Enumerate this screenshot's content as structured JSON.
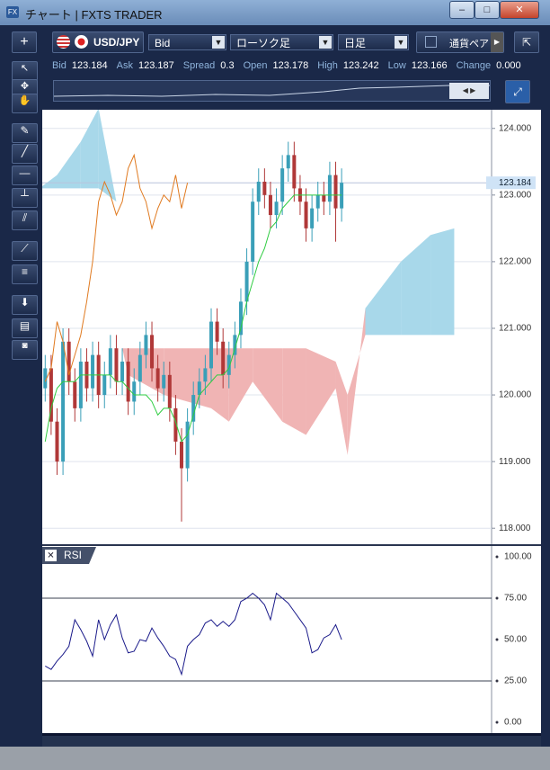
{
  "window": {
    "title": "チャート | FXTS TRADER"
  },
  "toolbar": {
    "symbol": "USD/JPY",
    "price_type": "Bid",
    "chart_type": "ローソク足",
    "period": "日足",
    "pair_label": "通貨ペア"
  },
  "quote": [
    {
      "label": "Bid",
      "value": "123.184"
    },
    {
      "label": "Ask",
      "value": "123.187"
    },
    {
      "label": "Spread",
      "value": "0.3"
    },
    {
      "label": "Open",
      "value": "123.178"
    },
    {
      "label": "High",
      "value": "123.242"
    },
    {
      "label": "Low",
      "value": "123.166"
    },
    {
      "label": "Change",
      "value": "0.000"
    }
  ],
  "chart_data": {
    "type": "candlestick",
    "xlim": [
      -0.5,
      75.3
    ],
    "ylim": [
      117.76,
      124.28
    ],
    "yticks": [
      {
        "value": 124,
        "label": "124.000"
      },
      {
        "value": 123,
        "label": "123.000"
      },
      {
        "value": 122,
        "label": "122.000"
      },
      {
        "value": 121,
        "label": "121.000"
      },
      {
        "value": 120,
        "label": "120.000"
      },
      {
        "value": 119,
        "label": "119.000"
      },
      {
        "value": 118,
        "label": "118.000"
      }
    ],
    "grid": true,
    "up_color": "#3a9fb8",
    "down_color": "#b03838",
    "open": [
      120.1,
      120.4,
      119.6,
      119.0,
      120.8,
      120.2,
      119.8,
      120.5,
      120.1,
      120.6,
      120.0,
      120.3,
      120.7,
      120.2,
      120.5,
      119.9,
      120.2,
      120.6,
      120.9,
      120.4,
      120.1,
      120.3,
      119.8,
      119.3,
      118.9,
      119.6,
      120.0,
      120.2,
      120.4,
      121.1,
      120.8,
      120.3,
      120.6,
      120.9,
      121.4,
      122.0,
      122.9,
      123.2,
      123.0,
      122.7,
      122.9,
      123.4,
      123.6,
      123.1,
      122.9,
      122.5,
      122.8,
      123.0,
      122.9,
      123.3,
      122.8
    ],
    "high": [
      120.6,
      120.6,
      119.8,
      121.0,
      121.0,
      120.4,
      120.7,
      120.7,
      120.8,
      120.8,
      120.5,
      120.9,
      120.9,
      120.7,
      120.7,
      120.4,
      120.8,
      121.1,
      121.1,
      120.6,
      120.5,
      120.5,
      120.0,
      119.5,
      119.8,
      120.2,
      120.4,
      120.6,
      121.3,
      121.3,
      121.0,
      120.8,
      121.1,
      121.6,
      122.2,
      123.1,
      123.4,
      123.4,
      123.2,
      123.1,
      123.6,
      123.8,
      123.8,
      123.3,
      123.1,
      123.0,
      123.2,
      123.2,
      123.5,
      123.5,
      123.4
    ],
    "low": [
      119.9,
      119.4,
      118.8,
      118.8,
      120.0,
      119.6,
      119.6,
      119.9,
      119.9,
      119.8,
      119.8,
      120.1,
      120.0,
      120.0,
      119.7,
      119.7,
      120.0,
      120.4,
      120.2,
      119.9,
      119.9,
      119.6,
      119.1,
      118.1,
      118.7,
      119.4,
      119.8,
      120.0,
      120.2,
      120.6,
      120.1,
      120.1,
      120.4,
      120.7,
      121.2,
      121.8,
      122.7,
      122.8,
      122.5,
      122.5,
      122.7,
      123.2,
      122.9,
      122.7,
      122.3,
      122.3,
      122.6,
      122.7,
      122.7,
      122.3,
      122.6
    ],
    "close": [
      120.4,
      119.6,
      119.0,
      120.8,
      120.2,
      119.8,
      120.5,
      120.1,
      120.6,
      120.0,
      120.3,
      120.7,
      120.2,
      120.5,
      119.9,
      120.2,
      120.6,
      120.9,
      120.4,
      120.1,
      120.3,
      119.8,
      119.3,
      118.9,
      119.6,
      120.0,
      120.2,
      120.4,
      121.1,
      120.8,
      120.3,
      120.6,
      120.9,
      121.4,
      122.0,
      122.9,
      123.2,
      123.0,
      122.7,
      122.9,
      123.4,
      123.6,
      123.1,
      122.9,
      122.5,
      122.8,
      123.0,
      122.9,
      123.3,
      122.8,
      123.184
    ],
    "lines": [
      {
        "color": "#e07a20",
        "values": [
          120.2,
          120.4,
          121.1,
          120.8,
          120.3,
          120.6,
          120.9,
          121.4,
          122.0,
          122.9,
          123.2,
          123.0,
          122.7,
          122.9,
          123.4,
          123.6,
          123.1,
          122.9,
          122.5,
          122.8,
          123.0,
          122.9,
          123.3,
          122.8,
          123.184,
          null,
          null,
          null,
          null,
          null,
          null,
          null,
          null,
          null,
          null,
          null,
          null,
          null,
          null,
          null,
          null,
          null,
          null,
          null,
          null,
          null,
          null,
          null,
          null,
          null,
          null
        ]
      },
      {
        "color": "#2ecc40",
        "values": [
          119.3,
          119.8,
          120.1,
          120.2,
          120.2,
          120.2,
          120.3,
          120.3,
          120.3,
          120.3,
          120.3,
          120.3,
          120.2,
          120.2,
          120.1,
          120.0,
          120.0,
          120.0,
          119.9,
          119.7,
          119.8,
          119.8,
          119.6,
          119.3,
          119.4,
          119.7,
          120.0,
          120.1,
          120.2,
          120.3,
          120.3,
          120.4,
          120.7,
          121.0,
          121.4,
          121.7,
          122.0,
          122.2,
          122.5,
          122.6,
          122.8,
          122.9,
          123.0,
          123.0,
          123.0,
          123.0,
          123.0,
          123.0,
          123.0,
          123.0,
          123.0
        ]
      }
    ],
    "cloud": {
      "up_color": "#a8d8ea",
      "down_color": "#f0b4b4",
      "x": [
        -1,
        2,
        6,
        9,
        12,
        13,
        14,
        20,
        28,
        31,
        35,
        40,
        44,
        49,
        51,
        54,
        60,
        65,
        69
      ],
      "span_a": [
        123.1,
        123.3,
        123.8,
        124.3,
        122.9,
        120.7,
        120.3,
        120.0,
        119.8,
        119.6,
        120.2,
        119.6,
        119.4,
        120.1,
        119.1,
        121.3,
        122.0,
        122.4,
        122.5
      ],
      "span_b": [
        123.1,
        123.1,
        123.1,
        123.1,
        122.9,
        120.7,
        120.7,
        120.7,
        120.7,
        120.7,
        120.7,
        120.7,
        120.7,
        120.5,
        120.0,
        120.9,
        120.9,
        120.9,
        120.9
      ]
    },
    "last": {
      "value": 123.184,
      "label": "123.184"
    },
    "rsi": {
      "title": "RSI",
      "color": "#1a1a8a",
      "ylim": [
        -6.5,
        106
      ],
      "yticks": [
        {
          "value": 100,
          "label": "100.00"
        },
        {
          "value": 75,
          "label": "75.00"
        },
        {
          "value": 50,
          "label": "50.00"
        },
        {
          "value": 25,
          "label": "25.00"
        },
        {
          "value": 0,
          "label": "0.00"
        }
      ],
      "levels": [
        75,
        25
      ],
      "values": [
        34,
        32,
        37,
        41,
        46,
        62,
        56,
        49,
        40,
        62,
        50,
        59,
        65,
        51,
        42,
        43,
        50,
        49,
        57,
        51,
        46,
        40,
        38,
        29,
        46,
        50,
        53,
        60,
        62,
        58,
        61,
        58,
        62,
        73,
        75,
        78,
        75,
        71,
        62,
        78,
        75,
        72,
        67,
        62,
        57,
        42,
        44,
        51,
        53,
        59,
        50
      ]
    }
  }
}
